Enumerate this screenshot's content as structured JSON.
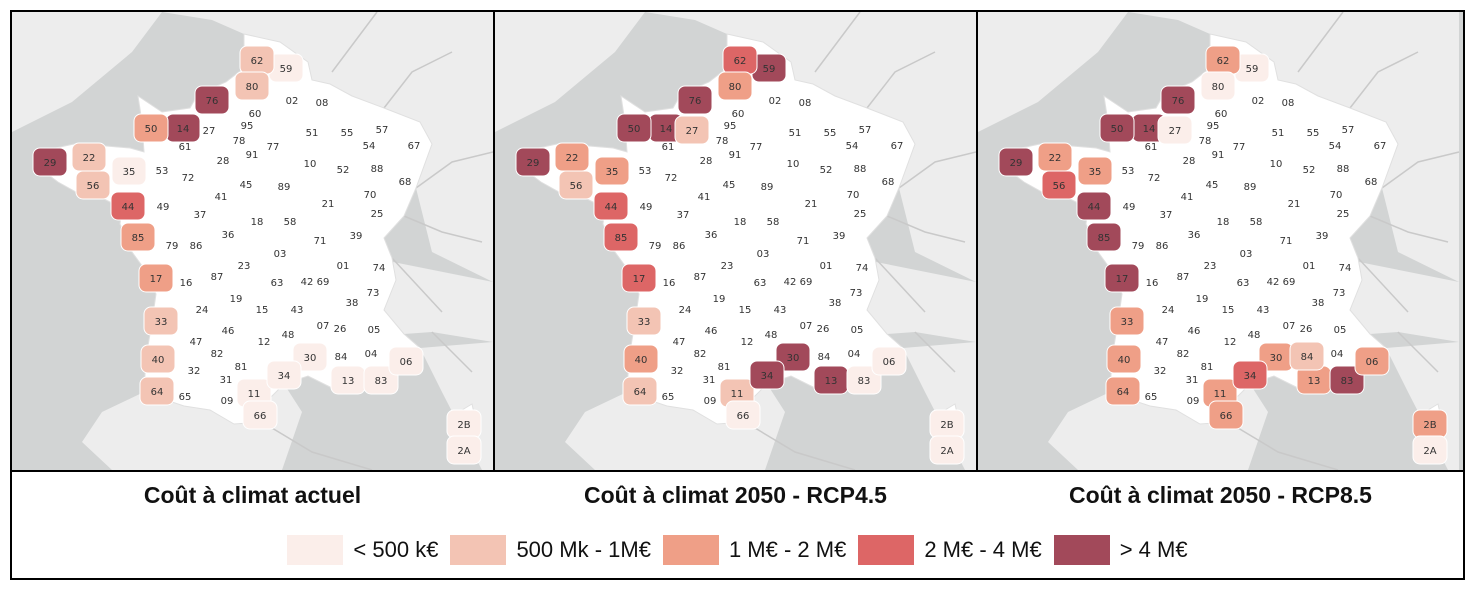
{
  "titles": {
    "current": "Coût à climat actuel",
    "rcp45": "Coût à climat 2050 - RCP4.5",
    "rcp85": "Coût à climat 2050 - RCP8.5"
  },
  "legend": [
    {
      "label": "< 500 k€",
      "color": "#fbeeea"
    },
    {
      "label": "500 Mk - 1M€",
      "color": "#f3c4b4"
    },
    {
      "label": "1 M€ - 2 M€",
      "color": "#ef9f87"
    },
    {
      "label": "2 M€ - 4 M€",
      "color": "#dd6666"
    },
    {
      "label": "> 4 M€",
      "color": "#a2495a"
    }
  ],
  "colors": {
    "sea": "#d2d4d4",
    "land_foreign": "#ededed",
    "land_france": "#ffffff",
    "border": "#c9c9c9"
  },
  "departments": [
    "62",
    "59",
    "80",
    "76",
    "60",
    "02",
    "08",
    "50",
    "14",
    "27",
    "95",
    "78",
    "51",
    "55",
    "57",
    "54",
    "67",
    "61",
    "91",
    "77",
    "28",
    "10",
    "52",
    "88",
    "29",
    "22",
    "35",
    "53",
    "72",
    "45",
    "89",
    "70",
    "68",
    "56",
    "44",
    "41",
    "21",
    "25",
    "37",
    "18",
    "58",
    "49",
    "36",
    "71",
    "39",
    "85",
    "79",
    "86",
    "03",
    "01",
    "74",
    "23",
    "63",
    "42",
    "69",
    "87",
    "73",
    "17",
    "16",
    "19",
    "15",
    "43",
    "38",
    "24",
    "46",
    "07",
    "26",
    "05",
    "33",
    "47",
    "12",
    "48",
    "82",
    "81",
    "30",
    "84",
    "04",
    "06",
    "40",
    "32",
    "31",
    "34",
    "13",
    "83",
    "64",
    "65",
    "09",
    "11",
    "66",
    "2B",
    "2A"
  ],
  "panel_values": {
    "current": {
      "62": 1,
      "80": 1,
      "76": 4,
      "50": 2,
      "14": 4,
      "29": 4,
      "22": 1,
      "56": 1,
      "44": 3,
      "85": 2,
      "17": 2,
      "33": 1,
      "40": 1,
      "64": 1,
      "59": 0,
      "35": 0,
      "30": 0,
      "34": 0,
      "13": 0,
      "83": 0,
      "06": 0,
      "11": 0,
      "66": 0,
      "2B": 0,
      "2A": 0
    },
    "rcp45": {
      "62": 3,
      "59": 4,
      "80": 2,
      "76": 4,
      "50": 4,
      "14": 4,
      "27": 1,
      "29": 4,
      "22": 2,
      "35": 2,
      "56": 1,
      "44": 3,
      "85": 3,
      "17": 3,
      "33": 1,
      "40": 2,
      "64": 1,
      "30": 4,
      "34": 4,
      "13": 4,
      "11": 1,
      "83": 0,
      "06": 0,
      "66": 0,
      "2B": 0,
      "2A": 0
    },
    "rcp85": {
      "62": 2,
      "80": 0,
      "59": 0,
      "76": 4,
      "50": 4,
      "14": 4,
      "27": 0,
      "29": 4,
      "22": 2,
      "35": 2,
      "56": 3,
      "44": 4,
      "85": 4,
      "17": 4,
      "33": 2,
      "40": 2,
      "64": 2,
      "30": 2,
      "34": 3,
      "13": 2,
      "83": 4,
      "06": 2,
      "11": 2,
      "66": 2,
      "84": 1,
      "2B": 2,
      "2A": 0
    }
  }
}
